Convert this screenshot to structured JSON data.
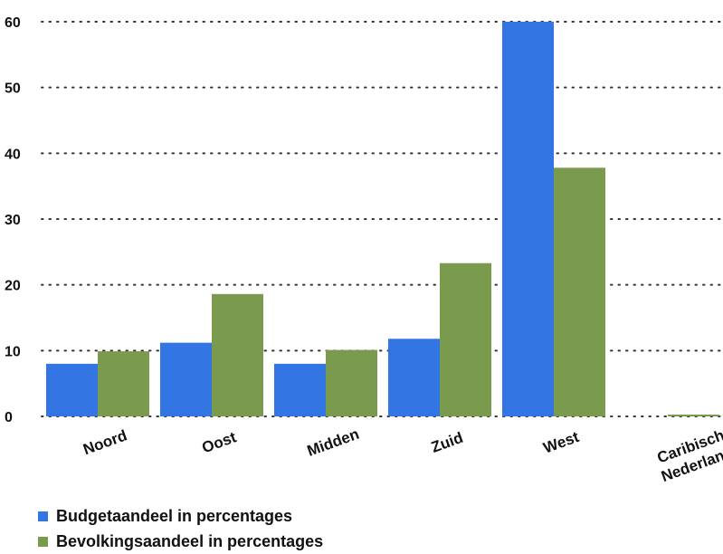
{
  "chart_data": {
    "type": "bar",
    "categories": [
      "Noord",
      "Oost",
      "Midden",
      "Zuid",
      "West",
      "Caribisch Nederland"
    ],
    "series": [
      {
        "name": "Budgetaandeel in percentages",
        "color": "#3375e3",
        "values": [
          8,
          11.2,
          8,
          11.8,
          60,
          0
        ]
      },
      {
        "name": "Bevolkingsaandeel in percentages",
        "color": "#7a9a4d",
        "values": [
          9.9,
          18.6,
          10.1,
          23.3,
          37.8,
          0.2
        ]
      }
    ],
    "yticks": [
      0,
      10,
      20,
      30,
      40,
      50,
      60
    ],
    "ylim": [
      0,
      60
    ],
    "grid": true,
    "grid_style": "dotted",
    "legend_position": "bottom-left",
    "title": "",
    "xlabel": "",
    "ylabel": ""
  }
}
